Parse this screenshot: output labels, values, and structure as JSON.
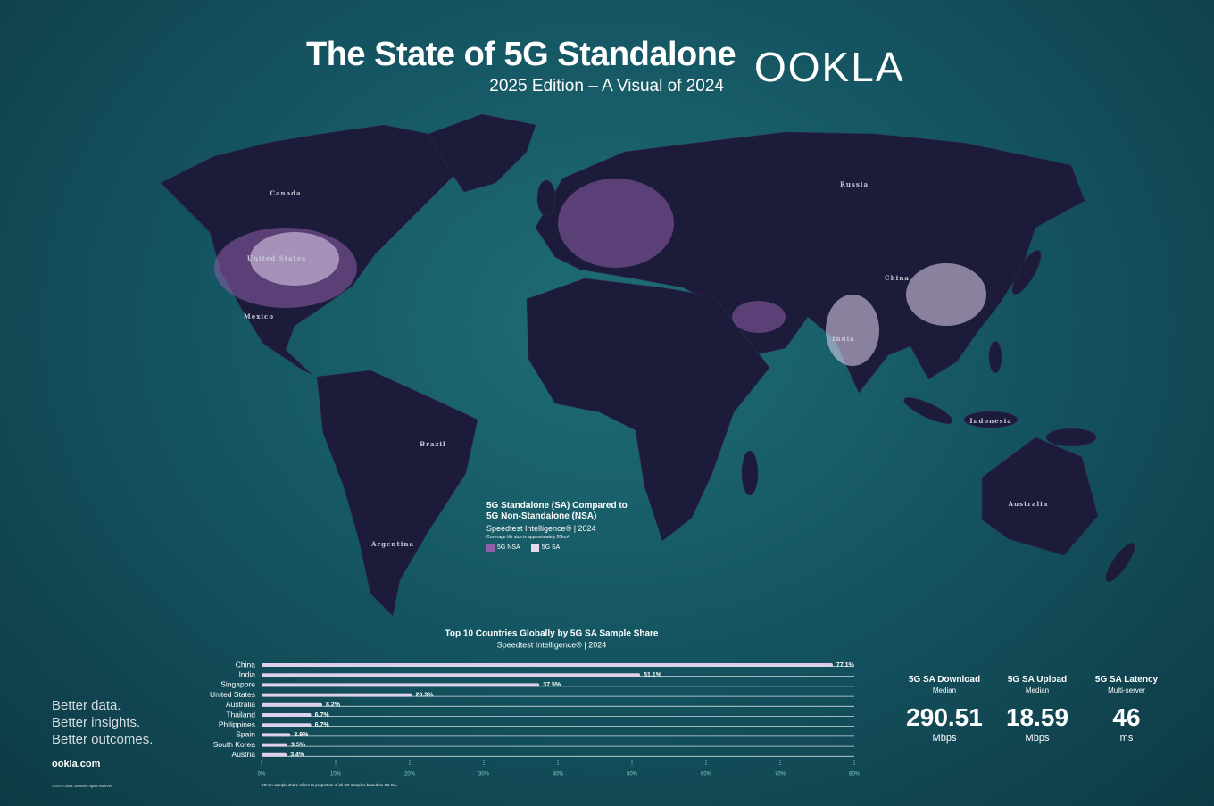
{
  "header": {
    "title": "The State of 5G Standalone",
    "subtitle": "2025 Edition – A Visual of 2024",
    "logo": "OOKLA"
  },
  "map": {
    "labels": [
      "Canada",
      "United States",
      "Mexico",
      "Brazil",
      "Argentina",
      "Russia",
      "China",
      "India",
      "Indonesia",
      "Australia"
    ],
    "legend": {
      "title": "5G Standalone (SA) Compared to 5G Non-Standalone (NSA)",
      "subtitle": "Speedtest Intelligence® | 2024",
      "note": "Coverage tile size is approximately 20km².",
      "items": [
        {
          "name": "5G NSA",
          "color": "#8e5ea8"
        },
        {
          "name": "5G SA",
          "color": "#e6d6f0"
        }
      ]
    }
  },
  "chart_data": {
    "type": "hbar",
    "title": "Top 10 Countries Globally by 5G SA Sample Share",
    "subtitle": "Speedtest Intelligence® | 2024",
    "categories": [
      "China",
      "India",
      "Singapore",
      "United States",
      "Australia",
      "Thailand",
      "Philippines",
      "Spain",
      "South Korea",
      "Austria"
    ],
    "values": [
      77.1,
      51.1,
      37.5,
      20.3,
      8.2,
      6.7,
      6.7,
      3.9,
      3.5,
      3.4
    ],
    "value_labels": [
      "77.1%",
      "51.1%",
      "37.5%",
      "20.3%",
      "8.2%",
      "6.7%",
      "6.7%",
      "3.9%",
      "3.5%",
      "3.4%"
    ],
    "color": "#ddd0ea",
    "xlim": [
      0,
      80
    ],
    "xticks": [
      {
        "value": 0,
        "label": "0%"
      },
      {
        "value": 10,
        "label": "10%"
      },
      {
        "value": 20,
        "label": "20%"
      },
      {
        "value": 30,
        "label": "30%"
      },
      {
        "value": 40,
        "label": "40%"
      },
      {
        "value": 50,
        "label": "50%"
      },
      {
        "value": 60,
        "label": "60%"
      },
      {
        "value": 70,
        "label": "70%"
      },
      {
        "value": 80,
        "label": "80%"
      }
    ],
    "note": "5G SA sample share refers to proportion of all 5G samples based on 5G SA."
  },
  "stats": [
    {
      "label": "5G SA Download",
      "sublabel": "Median",
      "value": "290.51",
      "unit": "Mbps"
    },
    {
      "label": "5G SA Upload",
      "sublabel": "Median",
      "value": "18.59",
      "unit": "Mbps"
    },
    {
      "label": "5G SA Latency",
      "sublabel": "Multi-server",
      "value": "46",
      "unit": "ms"
    }
  ],
  "footer": {
    "tagline": [
      "Better data.",
      "Better insights.",
      "Better outcomes."
    ],
    "website": "ookla.com",
    "copyright": "©2025 Ookla. All world rights reserved."
  }
}
